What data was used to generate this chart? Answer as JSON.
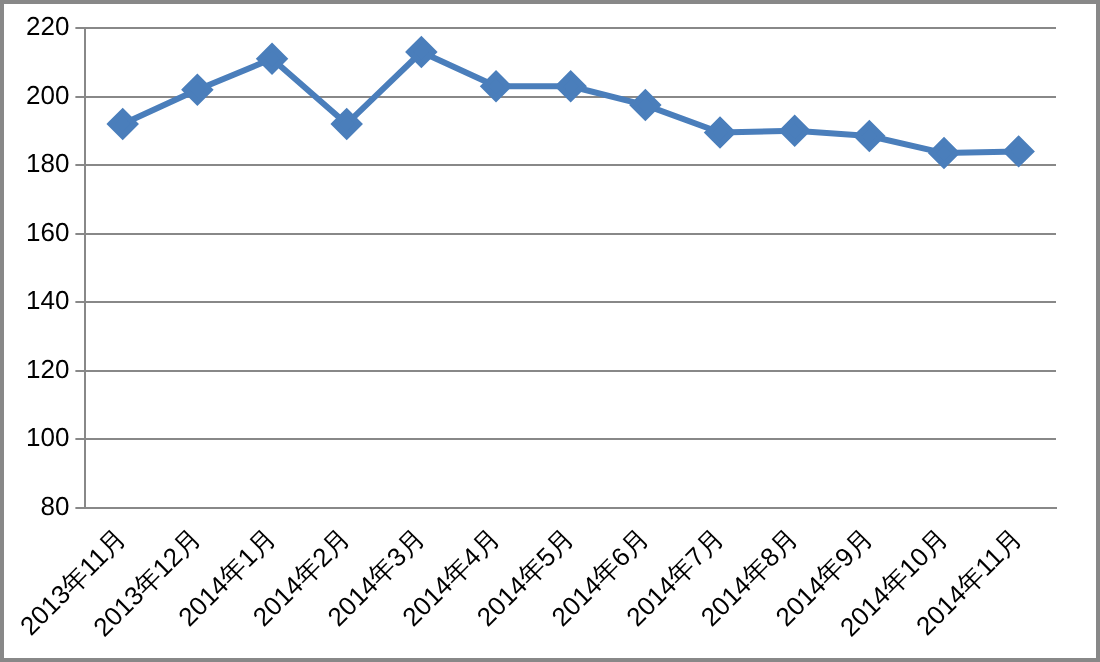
{
  "chart_data": {
    "type": "line",
    "categories": [
      "2013年11月",
      "2013年12月",
      "2014年1月",
      "2014年2月",
      "2014年3月",
      "2014年4月",
      "2014年5月",
      "2014年6月",
      "2014年7月",
      "2014年8月",
      "2014年9月",
      "2014年10月",
      "2014年11月"
    ],
    "series": [
      {
        "color": "#4a7ebb",
        "values": [
          192,
          202,
          211,
          192,
          213,
          203,
          203,
          197.5,
          189.5,
          190,
          188.5,
          183.5,
          184
        ]
      }
    ],
    "ylim": [
      80,
      220
    ],
    "yticks": [
      80,
      100,
      120,
      140,
      160,
      180,
      200,
      220
    ],
    "grid": "y",
    "legend": false,
    "marker": "diamond",
    "line_style": "solid"
  }
}
